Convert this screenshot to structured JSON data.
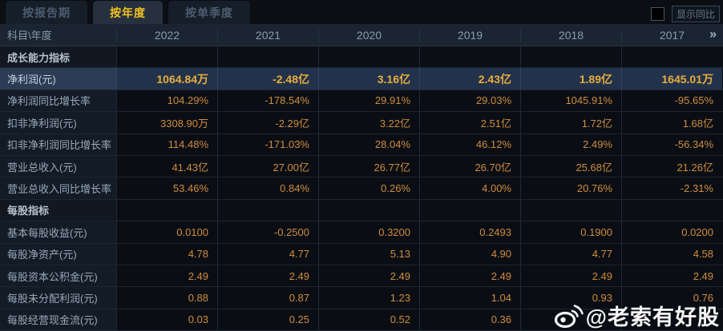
{
  "tabs": [
    {
      "label": "按报告期",
      "active": false
    },
    {
      "label": "按年度",
      "active": true
    },
    {
      "label": "按单季度",
      "active": false
    }
  ],
  "controls": {
    "show_yoy_label": "显示同比",
    "checkbox_checked": false
  },
  "table": {
    "corner_header": "科目\\年度",
    "year_columns": [
      "2022",
      "2021",
      "2020",
      "2019",
      "2018",
      "2017"
    ],
    "more_columns_icon": "»",
    "rows": [
      {
        "type": "section",
        "label": "成长能力指标",
        "values": [
          "",
          "",
          "",
          "",
          "",
          ""
        ]
      },
      {
        "type": "highlight",
        "label": "净利润(元)",
        "values": [
          "1064.84万",
          "-2.48亿",
          "3.16亿",
          "2.43亿",
          "1.89亿",
          "1645.01万"
        ]
      },
      {
        "type": "data",
        "label": "净利润同比增长率",
        "values": [
          "104.29%",
          "-178.54%",
          "29.91%",
          "29.03%",
          "1045.91%",
          "-95.65%"
        ]
      },
      {
        "type": "data",
        "label": "扣非净利润(元)",
        "values": [
          "3308.90万",
          "-2.29亿",
          "3.22亿",
          "2.51亿",
          "1.72亿",
          "1.68亿"
        ]
      },
      {
        "type": "data",
        "label": "扣非净利润同比增长率",
        "values": [
          "114.48%",
          "-171.03%",
          "28.04%",
          "46.12%",
          "2.49%",
          "-56.34%"
        ]
      },
      {
        "type": "data",
        "label": "营业总收入(元)",
        "values": [
          "41.43亿",
          "27.00亿",
          "26.77亿",
          "26.70亿",
          "25.68亿",
          "21.26亿"
        ]
      },
      {
        "type": "data",
        "label": "营业总收入同比增长率",
        "values": [
          "53.46%",
          "0.84%",
          "0.26%",
          "4.00%",
          "20.76%",
          "-2.31%"
        ]
      },
      {
        "type": "section",
        "label": "每股指标",
        "values": [
          "",
          "",
          "",
          "",
          "",
          ""
        ]
      },
      {
        "type": "data",
        "label": "基本每股收益(元)",
        "values": [
          "0.0100",
          "-0.2500",
          "0.3200",
          "0.2493",
          "0.1900",
          "0.0200"
        ]
      },
      {
        "type": "data",
        "label": "每股净资产(元)",
        "values": [
          "4.78",
          "4.77",
          "5.13",
          "4.90",
          "4.77",
          "4.58"
        ]
      },
      {
        "type": "data",
        "label": "每股资本公积金(元)",
        "values": [
          "2.49",
          "2.49",
          "2.49",
          "2.49",
          "2.49",
          "2.49"
        ]
      },
      {
        "type": "data",
        "label": "每股未分配利润(元)",
        "values": [
          "0.88",
          "0.87",
          "1.23",
          "1.04",
          "0.93",
          "0.76"
        ]
      },
      {
        "type": "data",
        "label": "每股经营现金流(元)",
        "values": [
          "0.03",
          "0.25",
          "0.52",
          "0.36",
          "",
          ""
        ]
      }
    ]
  },
  "watermark": {
    "text": "@老索有好股",
    "icon": "weibo-icon"
  },
  "colors": {
    "background": "#0a0d12",
    "active_tab_text": "#f2c31e",
    "header_bg": "#1b2531",
    "value_orange": "#d08c3e",
    "highlight_gold": "#e9ad3e",
    "highlight_row_bg": "#22324a",
    "watermark_white": "#ffffff"
  }
}
